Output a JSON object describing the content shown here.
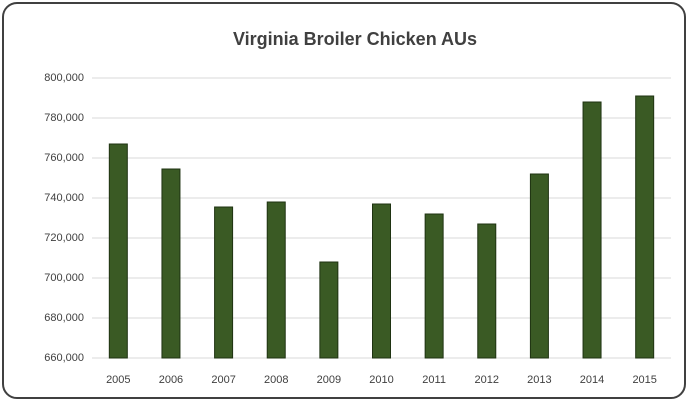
{
  "chart_data": {
    "type": "bar",
    "title": "Virginia Broiler Chicken AUs",
    "categories": [
      "2005",
      "2006",
      "2007",
      "2008",
      "2009",
      "2010",
      "2011",
      "2012",
      "2013",
      "2014",
      "2015"
    ],
    "values": [
      767000,
      754500,
      735500,
      738000,
      708000,
      737000,
      732000,
      727000,
      752000,
      788000,
      791000
    ],
    "color": "#3a5a24",
    "ylim": [
      660000,
      800000
    ],
    "yticks": [
      {
        "value": 660000,
        "label": "660,000"
      },
      {
        "value": 680000,
        "label": "680,000"
      },
      {
        "value": 700000,
        "label": "700,000"
      },
      {
        "value": 720000,
        "label": "720,000"
      },
      {
        "value": 740000,
        "label": "740,000"
      },
      {
        "value": 760000,
        "label": "760,000"
      },
      {
        "value": 780000,
        "label": "780,000"
      },
      {
        "value": 800000,
        "label": "800,000"
      }
    ],
    "grid": true
  }
}
